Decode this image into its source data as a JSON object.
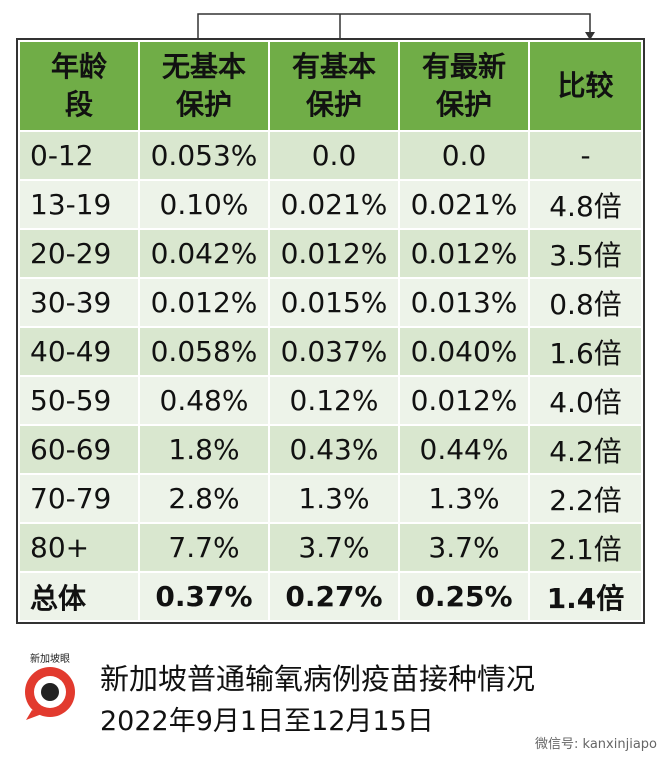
{
  "table": {
    "header": [
      [
        "年龄",
        "段"
      ],
      [
        "无基本",
        "保护"
      ],
      [
        "有基本",
        "保护"
      ],
      [
        "有最新",
        "保护"
      ],
      [
        "比较"
      ]
    ],
    "rows": [
      [
        "0-12",
        "0.053%",
        "0.0",
        "0.0",
        "-"
      ],
      [
        "13-19",
        "0.10%",
        "0.021%",
        "0.021%",
        "4.8倍"
      ],
      [
        "20-29",
        "0.042%",
        "0.012%",
        "0.012%",
        "3.5倍"
      ],
      [
        "30-39",
        "0.012%",
        "0.015%",
        "0.013%",
        "0.8倍"
      ],
      [
        "40-49",
        "0.058%",
        "0.037%",
        "0.040%",
        "1.6倍"
      ],
      [
        "50-59",
        "0.48%",
        "0.12%",
        "0.012%",
        "4.0倍"
      ],
      [
        "60-69",
        "1.8%",
        "0.43%",
        "0.44%",
        "4.2倍"
      ],
      [
        "70-79",
        "2.8%",
        "1.3%",
        "1.3%",
        "2.2倍"
      ],
      [
        "80+",
        "7.7%",
        "3.7%",
        "3.7%",
        "2.1倍"
      ],
      [
        "总体",
        "0.37%",
        "0.27%",
        "0.25%",
        "1.4倍"
      ]
    ]
  },
  "caption": [
    "新加坡普通输氧病例疫苗接种情况",
    "2022年9月1日至12月15日"
  ],
  "logo": "新加坡眼",
  "watermark": "微信号: kanxinjiapo"
}
